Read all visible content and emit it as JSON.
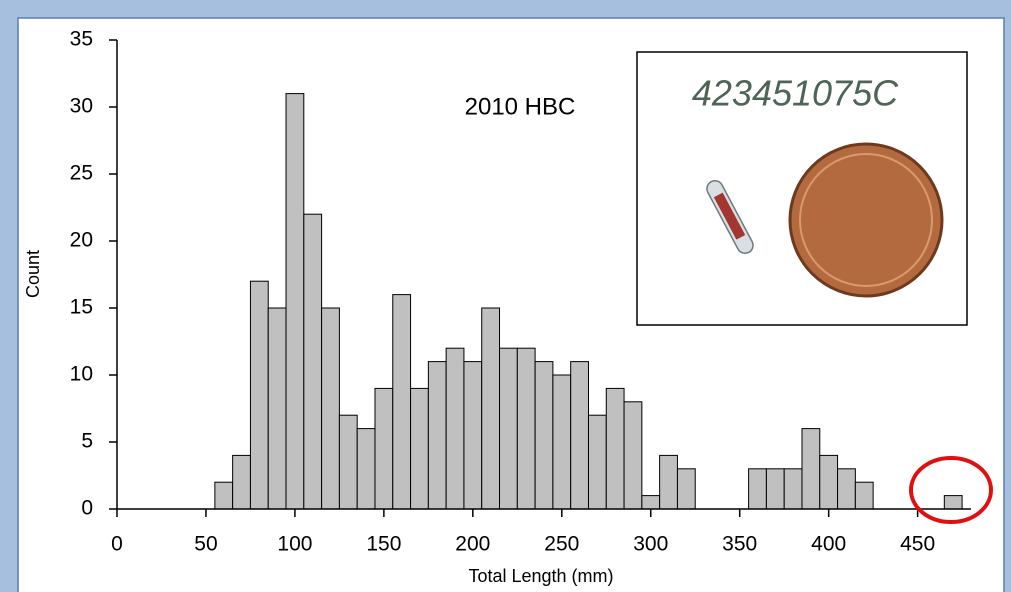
{
  "chart_data": {
    "type": "histogram",
    "annotation": "2010 HBC",
    "inset_text": "423451075C",
    "x_label": "Total Length (mm)",
    "y_label": "Count",
    "bins": [
      55,
      65,
      75,
      85,
      95,
      105,
      115,
      125,
      135,
      145,
      155,
      165,
      175,
      185,
      195,
      205,
      215,
      225,
      235,
      245,
      255,
      265,
      275,
      285,
      295,
      305,
      315,
      325,
      335,
      345,
      355,
      365,
      375,
      385,
      395,
      405,
      415,
      425,
      435,
      445,
      455,
      465,
      475
    ],
    "counts": [
      2,
      4,
      17,
      15,
      31,
      22,
      15,
      7,
      6,
      9,
      16,
      9,
      11,
      12,
      11,
      15,
      12,
      12,
      11,
      10,
      11,
      7,
      9,
      8,
      1,
      4,
      3,
      0,
      0,
      0,
      3,
      3,
      3,
      6,
      4,
      3,
      2,
      0,
      0,
      0,
      0,
      1
    ],
    "color": "#c0c0c0",
    "xlim": [
      0,
      480
    ],
    "xticks": [
      0,
      50,
      100,
      150,
      200,
      250,
      300,
      350,
      400,
      450
    ],
    "ylim": [
      0,
      35
    ],
    "yticks": [
      0,
      5,
      10,
      15,
      20,
      25,
      30,
      35
    ],
    "grid": false
  }
}
